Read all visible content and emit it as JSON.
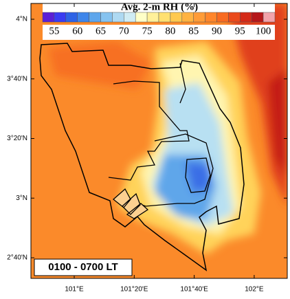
{
  "map": {
    "colorbar": {
      "title": "Avg. 2-m RH  (%)",
      "ticks": [
        55,
        60,
        65,
        70,
        75,
        80,
        85,
        90,
        95,
        100
      ],
      "colors": [
        "#5b1fd6",
        "#3a3cf2",
        "#2e63e6",
        "#3f86ea",
        "#5ea6ec",
        "#86c3f0",
        "#aed9f2",
        "#d0ecf4",
        "#ffffc8",
        "#fff09a",
        "#ffe070",
        "#ffc94f",
        "#ffb342",
        "#ff9c38",
        "#ff862c",
        "#f86b22",
        "#ea4a1c",
        "#d42a18",
        "#b5171a",
        "#f2a3ab"
      ]
    },
    "lat_labels": [
      "4°N",
      "3°40'N",
      "3°20'N",
      "3°N",
      "2°40'N"
    ],
    "lon_labels": [
      "101°E",
      "101°20'E",
      "101°40'E",
      "102°E"
    ],
    "period_label": "0100 - 0700 LT"
  }
}
